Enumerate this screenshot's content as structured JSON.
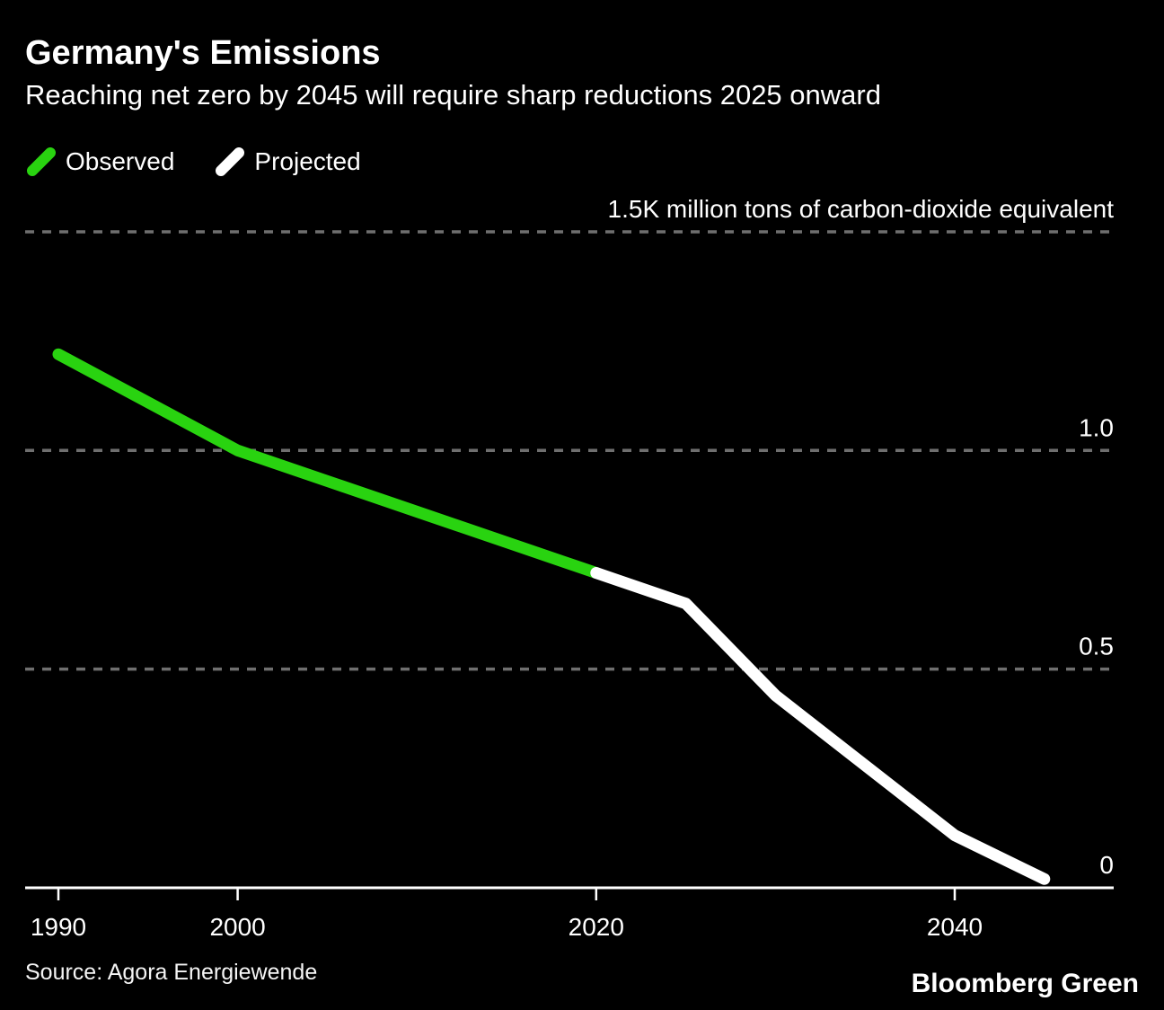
{
  "header": {
    "title": "Germany's Emissions",
    "subtitle": "Reaching net zero by 2045 will require sharp reductions 2025 onward"
  },
  "legend": [
    {
      "label": "Observed",
      "color": "#29d310"
    },
    {
      "label": "Projected",
      "color": "#ffffff"
    }
  ],
  "footer": {
    "source": "Source: Agora Energiewende",
    "brand": "Bloomberg Green"
  },
  "colors": {
    "background": "#000000",
    "observed_green": "#29d310",
    "projected_white": "#ffffff",
    "gridline_gray": "#6f6f6f",
    "axis_white": "#ffffff"
  },
  "chart_data": {
    "type": "line",
    "title": "Germany's Emissions",
    "subtitle": "Reaching net zero by 2045 will require sharp reductions 2025 onward",
    "ylabel": "1.5K million tons of carbon-dioxide equivalent",
    "xlabel": "",
    "units": "K million tons of carbon-dioxide equivalent",
    "xlim": [
      1988,
      2049
    ],
    "ylim": [
      0,
      1.55
    ],
    "grid": "horizontal-dashed",
    "legend_position": "top-left",
    "x_ticks": [
      "1990",
      "2000",
      "2020",
      "2040"
    ],
    "y_ticks": [
      {
        "value": 1.5,
        "label": "1.5K million tons of carbon-dioxide equivalent"
      },
      {
        "value": 1.0,
        "label": "1.0"
      },
      {
        "value": 0.5,
        "label": "0.5"
      },
      {
        "value": 0.0,
        "label": "0"
      }
    ],
    "series": [
      {
        "name": "Observed",
        "color": "#29d310",
        "x": [
          1990,
          1995,
          2000,
          2005,
          2010,
          2015,
          2020
        ],
        "values": [
          1.22,
          1.11,
          1.0,
          0.93,
          0.86,
          0.79,
          0.72
        ]
      },
      {
        "name": "Projected",
        "color": "#ffffff",
        "x": [
          2020,
          2025,
          2030,
          2040,
          2045
        ],
        "values": [
          0.72,
          0.65,
          0.44,
          0.12,
          0.02
        ]
      }
    ]
  }
}
